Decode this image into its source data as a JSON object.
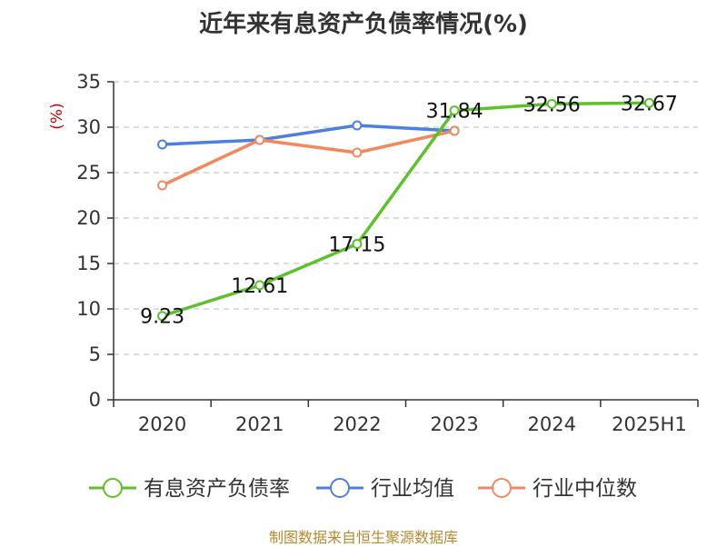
{
  "title": "近年来有息资产负债率情况(%)",
  "source": "制图数据来自恒生聚源数据库",
  "chart_data": {
    "type": "line",
    "title": "近年来有息资产负债率情况(%)",
    "ylabel": "(%)",
    "xlabel": "",
    "categories": [
      "2020",
      "2021",
      "2022",
      "2023",
      "2024",
      "2025H1"
    ],
    "ylim": [
      0,
      35
    ],
    "yticks": [
      0,
      5,
      10,
      15,
      20,
      25,
      30,
      35
    ],
    "grid": true,
    "legend_position": "bottom",
    "series": [
      {
        "name": "有息资产负债率",
        "color": "#5cc12a",
        "values": [
          9.23,
          12.61,
          17.15,
          31.84,
          32.56,
          32.67
        ],
        "labels": true
      },
      {
        "name": "行业均值",
        "color": "#4f7fdc",
        "values": [
          28.1,
          28.6,
          30.2,
          29.6,
          null,
          null
        ],
        "labels": false
      },
      {
        "name": "行业中位数",
        "color": "#f08a5d",
        "values": [
          23.6,
          28.6,
          27.2,
          29.6,
          null,
          null
        ],
        "labels": false
      }
    ]
  }
}
